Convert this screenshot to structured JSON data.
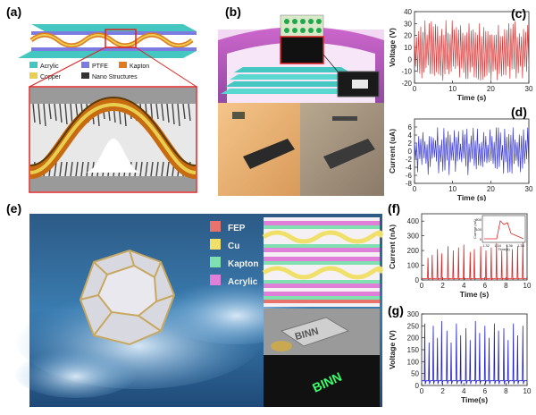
{
  "labels": {
    "a": "(a)",
    "b": "(b)",
    "c": "(c)",
    "d": "(d)",
    "e": "(e)",
    "f": "(f)",
    "g": "(g)"
  },
  "panel_a": {
    "legend": [
      "Acrylic",
      "PTFE",
      "Kapton",
      "Copper",
      "Nano Structures"
    ],
    "colors": {
      "acrylic": "#44c7c0",
      "ptfe": "#7b7be0",
      "kapton": "#e07b20",
      "copper": "#e8cf52",
      "nano": "#333333"
    }
  },
  "panel_e": {
    "materials": [
      {
        "name": "FEP",
        "color": "#e8736c"
      },
      {
        "name": "Cu",
        "color": "#f0e06a"
      },
      {
        "name": "Kapton",
        "color": "#7fe0b0"
      },
      {
        "name": "Acrylic",
        "color": "#e07fd8"
      }
    ],
    "device_text": "BINN",
    "led_text": "BINN"
  },
  "chart_data": [
    {
      "id": "c",
      "type": "line",
      "color": "#d83a3a",
      "xlabel": "Time (s)",
      "ylabel": "Voltage (V)",
      "xlim": [
        0,
        30
      ],
      "ylim": [
        -20,
        40
      ],
      "xticks": [
        0,
        10,
        20,
        30
      ],
      "yticks": [
        -20,
        -10,
        0,
        10,
        20,
        30,
        40
      ],
      "pattern": {
        "period_s": 0.55,
        "peak_range": [
          18,
          33
        ],
        "trough_range": [
          -18,
          -5
        ]
      }
    },
    {
      "id": "d",
      "type": "line",
      "color": "#3a3ad0",
      "xlabel": "Time (s)",
      "ylabel": "Current (uA)",
      "xlim": [
        0,
        30
      ],
      "ylim": [
        -8,
        8
      ],
      "xticks": [
        0,
        10,
        20,
        30
      ],
      "yticks": [
        -8,
        -6,
        -4,
        -2,
        0,
        2,
        4,
        6
      ],
      "pattern": {
        "period_s": 0.55,
        "peak_range": [
          1.5,
          6
        ],
        "trough_range": [
          -6,
          -1.5
        ]
      }
    },
    {
      "id": "f",
      "type": "line",
      "color": "#e02020",
      "xlabel": "Time (s)",
      "ylabel": "Current (nA)",
      "xlim": [
        0,
        10
      ],
      "ylim": [
        0,
        450
      ],
      "xticks": [
        0,
        2,
        4,
        6,
        8,
        10
      ],
      "yticks": [
        0,
        100,
        200,
        300,
        400
      ],
      "peaks": [
        [
          0.6,
          150
        ],
        [
          1.0,
          170
        ],
        [
          1.5,
          210
        ],
        [
          1.9,
          180
        ],
        [
          2.5,
          230
        ],
        [
          3.0,
          200
        ],
        [
          3.5,
          220
        ],
        [
          4.0,
          240
        ],
        [
          4.6,
          190
        ],
        [
          5.0,
          210
        ],
        [
          5.6,
          230
        ],
        [
          6.1,
          200
        ],
        [
          6.6,
          220
        ],
        [
          7.1,
          250
        ],
        [
          7.6,
          200
        ],
        [
          8.1,
          240
        ],
        [
          8.6,
          210
        ],
        [
          9.1,
          230
        ],
        [
          9.6,
          260
        ]
      ],
      "inset": {
        "xlabel": "Time(s)",
        "ylabel": "Current (nA)",
        "xticks": [
          "1.32",
          "1.34",
          "1.36",
          "1.38"
        ],
        "yticks": [
          "0",
          "100",
          "200"
        ]
      }
    },
    {
      "id": "g",
      "type": "line",
      "color": "#2020c8",
      "xlabel": "Time(s)",
      "ylabel": "Voltage (V)",
      "xlim": [
        0,
        10
      ],
      "ylim": [
        0,
        300
      ],
      "xticks": [
        0,
        2,
        4,
        6,
        8,
        10
      ],
      "yticks": [
        0,
        50,
        100,
        150,
        200,
        250,
        300
      ],
      "peaks": [
        [
          0.3,
          260
        ],
        [
          0.7,
          180
        ],
        [
          1.1,
          250
        ],
        [
          1.5,
          200
        ],
        [
          1.9,
          270
        ],
        [
          2.4,
          230
        ],
        [
          2.8,
          180
        ],
        [
          3.3,
          260
        ],
        [
          3.7,
          210
        ],
        [
          4.2,
          240
        ],
        [
          4.6,
          190
        ],
        [
          5.1,
          270
        ],
        [
          5.5,
          220
        ],
        [
          6.0,
          250
        ],
        [
          6.4,
          200
        ],
        [
          6.9,
          260
        ],
        [
          7.3,
          230
        ],
        [
          7.8,
          240
        ],
        [
          8.2,
          190
        ],
        [
          8.7,
          260
        ],
        [
          9.1,
          210
        ],
        [
          9.6,
          250
        ]
      ]
    }
  ]
}
